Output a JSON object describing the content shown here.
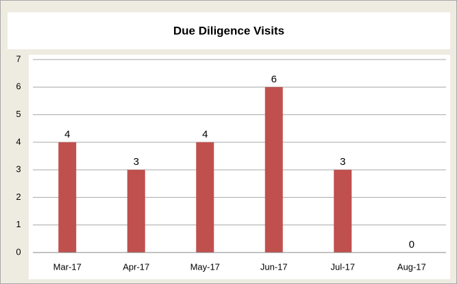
{
  "chart_data": {
    "type": "bar",
    "title": "Due Diligence Visits",
    "categories": [
      "Mar-17",
      "Apr-17",
      "May-17",
      "Jun-17",
      "Jul-17",
      "Aug-17"
    ],
    "values": [
      4,
      3,
      4,
      6,
      3,
      0
    ],
    "color": "#c0504d",
    "ylim": [
      0,
      7
    ],
    "yticks": [
      0,
      1,
      2,
      3,
      4,
      5,
      6,
      7
    ],
    "grid": true,
    "data_labels": true
  }
}
